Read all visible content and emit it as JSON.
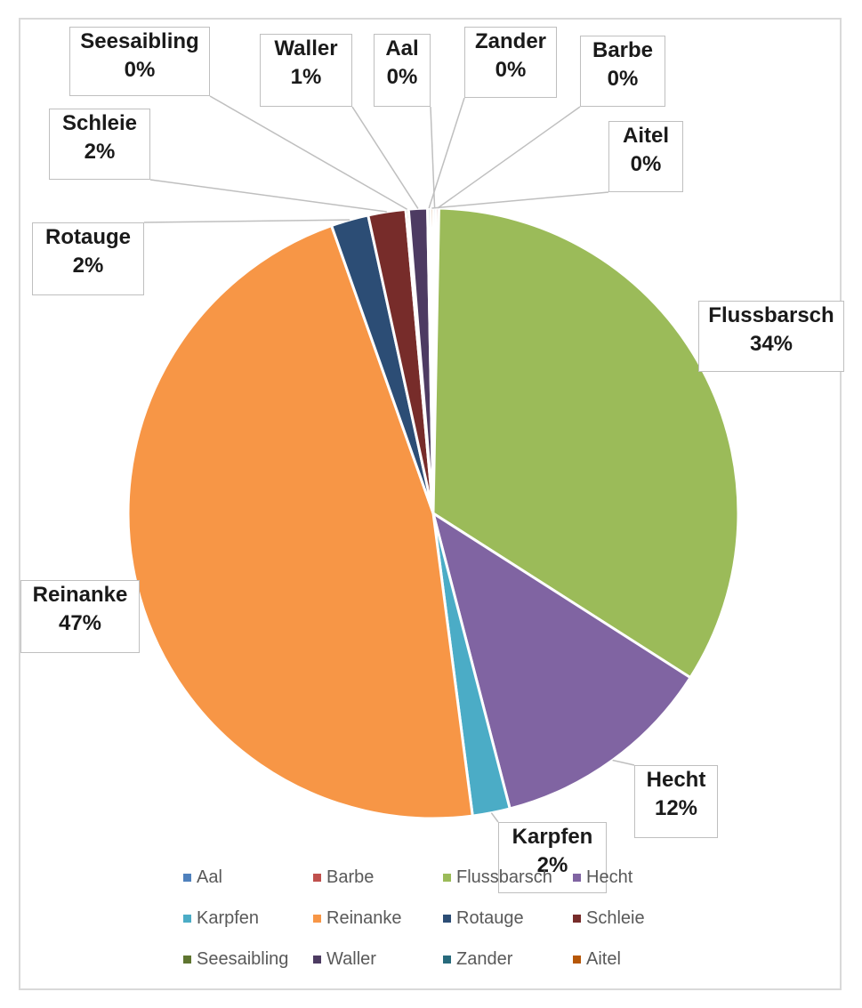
{
  "chart_data": {
    "type": "pie",
    "title": "",
    "slices": [
      {
        "name": "Aal",
        "value": 0,
        "label": "0%",
        "color": "#4f81bd"
      },
      {
        "name": "Barbe",
        "value": 0,
        "label": "0%",
        "color": "#c0504d"
      },
      {
        "name": "Flussbarsch",
        "value": 34,
        "label": "34%",
        "color": "#9bbb59"
      },
      {
        "name": "Hecht",
        "value": 12,
        "label": "12%",
        "color": "#8064a2"
      },
      {
        "name": "Karpfen",
        "value": 2,
        "label": "2%",
        "color": "#4bacc6"
      },
      {
        "name": "Reinanke",
        "value": 47,
        "label": "47%",
        "color": "#f79646"
      },
      {
        "name": "Rotauge",
        "value": 2,
        "label": "2%",
        "color": "#2c4d75"
      },
      {
        "name": "Schleie",
        "value": 2,
        "label": "2%",
        "color": "#772c2a"
      },
      {
        "name": "Seesaibling",
        "value": 0,
        "label": "0%",
        "color": "#5f7530"
      },
      {
        "name": "Waller",
        "value": 1,
        "label": "1%",
        "color": "#4d3b62"
      },
      {
        "name": "Zander",
        "value": 0,
        "label": "0%",
        "color": "#276a7c"
      },
      {
        "name": "Aitel",
        "value": 0,
        "label": "0%",
        "color": "#b65708"
      }
    ],
    "legend_position": "bottom"
  }
}
